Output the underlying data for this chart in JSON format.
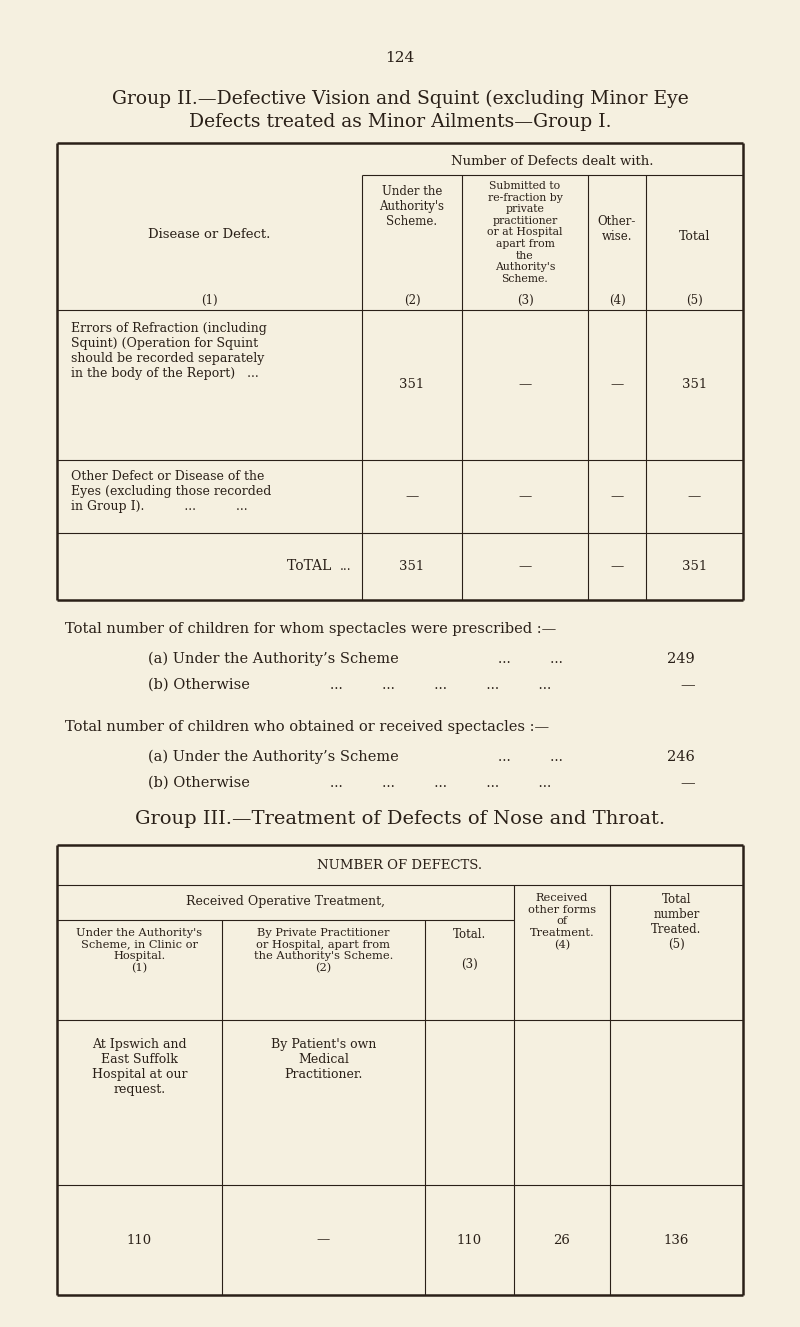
{
  "bg_color": "#f5f0e0",
  "page_number": "124",
  "title_line1": "Group II.—Defective Vision and Squint (excluding Minor Eye",
  "title_line2": "Defects treated as Minor Ailments—Group I.",
  "t1_header": "Number of Defects dealt with.",
  "t1_col2_header": "Under the\nAuthority's\nScheme.",
  "t1_col3_header": "Submitted to\nre-fraction by\nprivate\npractitioner\nor at Hospital\napart from\nthe\nAuthority's\nScheme.",
  "t1_col4_header": "Other-\nwise.",
  "t1_col5_header": "Total",
  "t1_disease_label": "Disease or Defect.",
  "t1_row1_label": "Errors of Refraction (including\nSquint) (Operation for Squint\nshould be recorded separately\nin the body of the Report)   ...",
  "t1_row1_vals": [
    "351",
    "—",
    "—",
    "351"
  ],
  "t1_row2_label": "Other Defect or Disease of the\nEyes (excluding those recorded\nin Group I).          ...          ...",
  "t1_row2_vals": [
    "—",
    "—",
    "—",
    "—"
  ],
  "t1_total_label": "Total",
  "t1_total_vals": [
    "351",
    "—",
    "—",
    "351"
  ],
  "sp1_title": "Total number of children for whom spectacles were prescribed :—",
  "sp1_a_label": "(a) Under the Authority’s Scheme",
  "sp1_a_dots": "...         ...",
  "sp1_a_val": "249",
  "sp1_b_label": "(b) Otherwise",
  "sp1_b_dots": "...         ...         ...         ...         ...",
  "sp1_b_val": "—",
  "sp2_title": "Total number of children who obtained or received spectacles :—",
  "sp2_a_label": "(a) Under the Authority’s Scheme",
  "sp2_a_dots": "...         ...",
  "sp2_a_val": "246",
  "sp2_b_label": "(b) Otherwise",
  "sp2_b_dots": "...         ...         ...         ...         ...",
  "sp2_b_val": "—",
  "g3_title": "Group III.—Treatment of Defects of Nose and Throat.",
  "t2_header": "NUMBER OF DEFECTS.",
  "t2_subheader": "Received Operative Treatment,",
  "t2_c1h": "Under the Authority's\nScheme, in Clinic or\nHospital.\n(1)",
  "t2_c2h": "By Private Practitioner\nor Hospital, apart from\nthe Authority's Scheme.\n(2)",
  "t2_c3h": "Total.\n\n(3)",
  "t2_c4h": "Received\nother forms\nof\nTreatment.\n(4)",
  "t2_c5h": "Total\nnumber\nTreated.\n(5)",
  "t2_r1c1": "At Ipswich and\nEast Suffolk\nHospital at our\nrequest.",
  "t2_r1c2": "By Patient's own\nMedical\nPractitioner.",
  "t2_data": [
    "110",
    "—",
    "110",
    "26",
    "136"
  ]
}
